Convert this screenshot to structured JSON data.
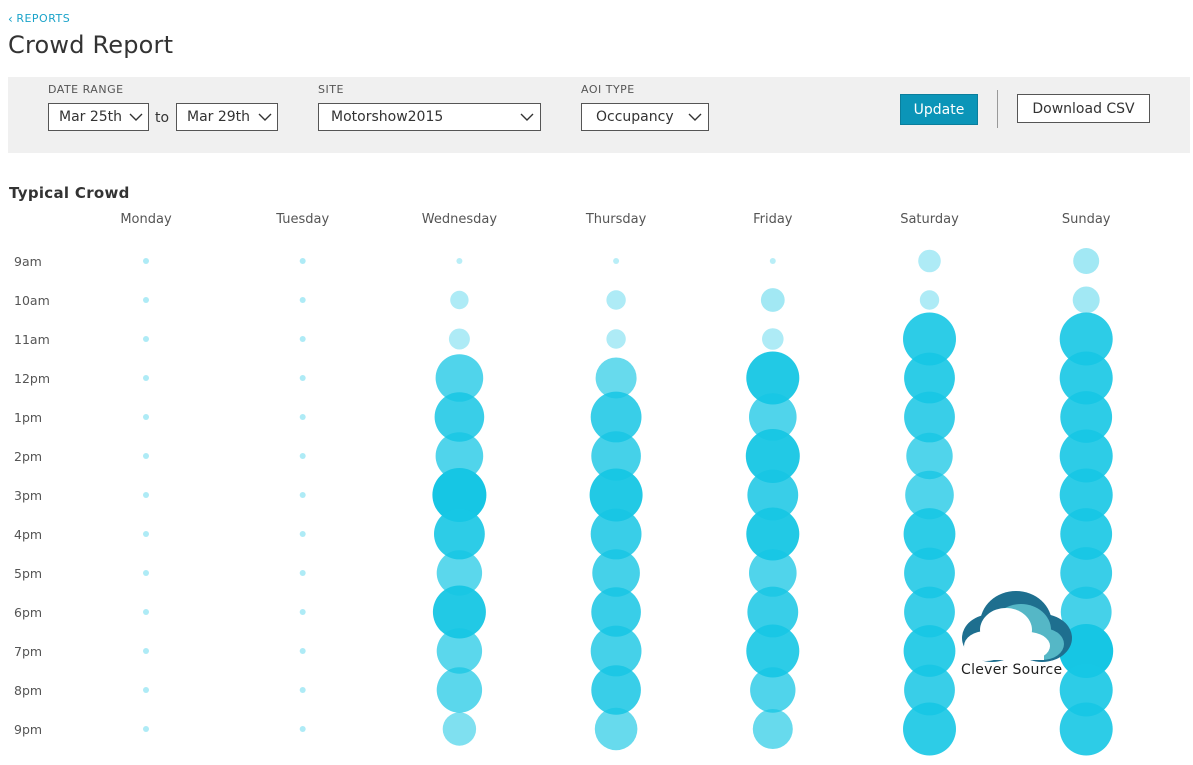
{
  "header": {
    "back_label": "REPORTS",
    "title": "Crowd Report"
  },
  "filters": {
    "date_range_label": "DATE RANGE",
    "date_from": "Mar 25th",
    "date_to_word": "to",
    "date_to": "Mar 29th",
    "site_label": "SITE",
    "site_value": "Motorshow2015",
    "aoi_label": "AOI TYPE",
    "aoi_value": "Occupancy",
    "update_label": "Update",
    "download_label": "Download CSV"
  },
  "colors": {
    "accent": "#0b95b8",
    "link": "#1aa3c9",
    "bubble": "#16c6e4"
  },
  "section": {
    "title": "Typical Crowd"
  },
  "chart_data": {
    "type": "bubble-grid",
    "title": "Typical Crowd",
    "days": [
      "Monday",
      "Tuesday",
      "Wednesday",
      "Thursday",
      "Friday",
      "Saturday",
      "Sunday"
    ],
    "hours": [
      "9am",
      "10am",
      "11am",
      "12pm",
      "1pm",
      "2pm",
      "3pm",
      "4pm",
      "5pm",
      "6pm",
      "7pm",
      "8pm",
      "9pm"
    ],
    "max_value": 100,
    "values": [
      [
        6,
        6,
        6,
        6,
        6,
        6,
        6,
        6,
        6,
        6,
        6,
        6,
        6
      ],
      [
        6,
        6,
        6,
        6,
        6,
        6,
        6,
        6,
        6,
        6,
        6,
        6,
        6
      ],
      [
        5,
        34,
        39,
        88,
        92,
        88,
        100,
        94,
        84,
        98,
        84,
        84,
        62
      ],
      [
        5,
        36,
        36,
        76,
        94,
        92,
        98,
        94,
        88,
        92,
        94,
        92,
        79
      ],
      [
        5,
        44,
        40,
        98,
        88,
        100,
        94,
        98,
        88,
        94,
        98,
        84,
        74
      ],
      [
        42,
        36,
        98,
        94,
        94,
        86,
        90,
        96,
        94,
        94,
        96,
        94,
        98
      ],
      [
        48,
        50,
        98,
        98,
        96,
        98,
        98,
        96,
        96,
        94,
        100,
        98,
        98
      ]
    ],
    "opacity": [
      [
        0.35,
        0.35,
        0.35,
        0.35,
        0.35,
        0.35,
        0.35,
        0.35,
        0.35,
        0.35,
        0.35,
        0.35,
        0.35
      ],
      [
        0.35,
        0.35,
        0.35,
        0.35,
        0.35,
        0.35,
        0.35,
        0.35,
        0.35,
        0.35,
        0.35,
        0.35,
        0.35
      ],
      [
        0.3,
        0.35,
        0.35,
        0.75,
        0.85,
        0.75,
        1.0,
        0.9,
        0.7,
        0.95,
        0.7,
        0.7,
        0.55
      ],
      [
        0.3,
        0.35,
        0.35,
        0.65,
        0.85,
        0.8,
        0.95,
        0.85,
        0.8,
        0.85,
        0.8,
        0.85,
        0.65
      ],
      [
        0.3,
        0.4,
        0.35,
        0.95,
        0.75,
        0.95,
        0.85,
        0.95,
        0.75,
        0.85,
        0.9,
        0.75,
        0.65
      ],
      [
        0.35,
        0.35,
        0.9,
        0.9,
        0.85,
        0.75,
        0.75,
        0.9,
        0.85,
        0.85,
        0.9,
        0.85,
        0.9
      ],
      [
        0.4,
        0.4,
        0.9,
        0.9,
        0.9,
        0.9,
        0.9,
        0.9,
        0.85,
        0.8,
        1.0,
        0.9,
        0.9
      ]
    ]
  },
  "watermark": {
    "text": "Clever Source"
  }
}
